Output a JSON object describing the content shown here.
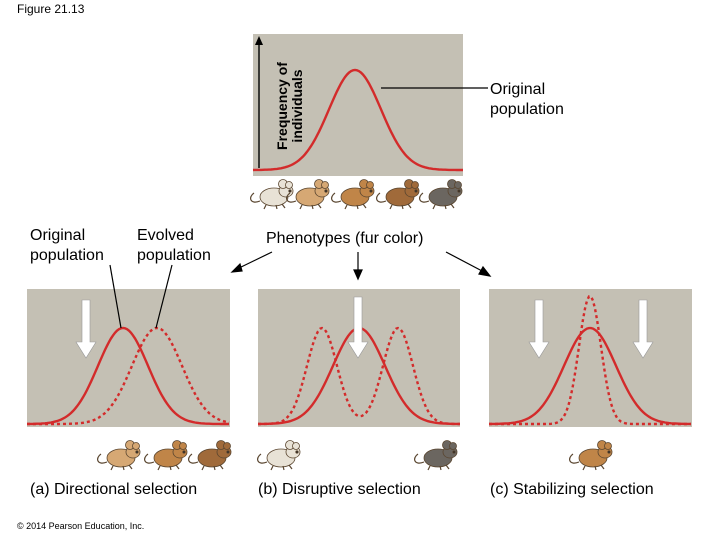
{
  "figure_number": "Figure 21.13",
  "y_axis_label": "Frequency of\nindividuals",
  "original_population_label": "Original\npopulation",
  "x_axis_label": "Phenotypes (fur color)",
  "panel_a": {
    "original_label": "Original\npopulation",
    "evolved_label": "Evolved\npopulation",
    "caption": "(a) Directional selection"
  },
  "panel_b": {
    "caption": "(b) Disruptive selection"
  },
  "panel_c": {
    "caption": "(c) Stabilizing selection"
  },
  "copyright": "© 2014 Pearson Education, Inc.",
  "colors": {
    "panel_background": "#c4c0b4",
    "curve": "#d32b2b",
    "arrow": "#ffffff",
    "mouse_light": "#e8e2d6",
    "mouse_tan": "#d6a874",
    "mouse_brown": "#c08548",
    "mouse_darkbrown": "#a06a3a",
    "mouse_gray": "#6b6660"
  },
  "mouse_phenotypes": [
    "light",
    "tan",
    "brown",
    "dark-brown",
    "gray"
  ]
}
